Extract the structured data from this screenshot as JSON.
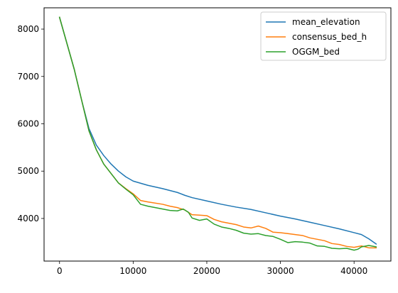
{
  "chart_data": {
    "type": "line",
    "title": "",
    "xlabel": "",
    "ylabel": "",
    "xlim": [
      -2100,
      45000
    ],
    "ylim": [
      3100,
      8450
    ],
    "x_ticks": [
      0,
      10000,
      20000,
      30000,
      40000
    ],
    "x_tick_labels": [
      "0",
      "10000",
      "20000",
      "30000",
      "40000"
    ],
    "y_ticks": [
      4000,
      5000,
      6000,
      7000,
      8000
    ],
    "y_tick_labels": [
      "4000",
      "5000",
      "6000",
      "7000",
      "8000"
    ],
    "grid": false,
    "legend_position": "top-right",
    "series": [
      {
        "name": "mean_elevation",
        "color": "#1f77b4",
        "points": [
          [
            0,
            8250
          ],
          [
            1000,
            7700
          ],
          [
            2000,
            7150
          ],
          [
            3000,
            6500
          ],
          [
            4000,
            5900
          ],
          [
            5000,
            5550
          ],
          [
            6000,
            5330
          ],
          [
            7000,
            5150
          ],
          [
            8000,
            5000
          ],
          [
            9000,
            4880
          ],
          [
            10000,
            4790
          ],
          [
            12000,
            4700
          ],
          [
            14000,
            4630
          ],
          [
            16000,
            4550
          ],
          [
            17000,
            4490
          ],
          [
            18000,
            4440
          ],
          [
            20000,
            4370
          ],
          [
            22000,
            4300
          ],
          [
            24000,
            4240
          ],
          [
            26000,
            4190
          ],
          [
            28000,
            4120
          ],
          [
            30000,
            4050
          ],
          [
            32000,
            3990
          ],
          [
            34000,
            3920
          ],
          [
            36000,
            3850
          ],
          [
            38000,
            3780
          ],
          [
            40000,
            3700
          ],
          [
            41000,
            3660
          ],
          [
            42000,
            3570
          ],
          [
            43000,
            3460
          ]
        ]
      },
      {
        "name": "consensus_bed_h",
        "color": "#ff7f0e",
        "points": [
          [
            0,
            8250
          ],
          [
            1000,
            7700
          ],
          [
            2000,
            7150
          ],
          [
            3000,
            6500
          ],
          [
            4000,
            5850
          ],
          [
            5000,
            5450
          ],
          [
            6000,
            5150
          ],
          [
            7000,
            4950
          ],
          [
            8000,
            4750
          ],
          [
            9000,
            4630
          ],
          [
            10000,
            4520
          ],
          [
            11000,
            4380
          ],
          [
            12000,
            4350
          ],
          [
            14000,
            4300
          ],
          [
            15000,
            4260
          ],
          [
            16000,
            4230
          ],
          [
            17000,
            4180
          ],
          [
            18000,
            4080
          ],
          [
            19000,
            4070
          ],
          [
            20000,
            4060
          ],
          [
            21000,
            3980
          ],
          [
            22000,
            3930
          ],
          [
            24000,
            3870
          ],
          [
            25000,
            3820
          ],
          [
            26000,
            3800
          ],
          [
            27000,
            3840
          ],
          [
            28000,
            3790
          ],
          [
            29000,
            3710
          ],
          [
            30000,
            3700
          ],
          [
            31000,
            3680
          ],
          [
            32000,
            3660
          ],
          [
            33000,
            3640
          ],
          [
            34000,
            3590
          ],
          [
            35000,
            3560
          ],
          [
            36000,
            3530
          ],
          [
            37000,
            3470
          ],
          [
            38000,
            3450
          ],
          [
            39000,
            3410
          ],
          [
            40000,
            3390
          ],
          [
            41000,
            3420
          ],
          [
            42000,
            3380
          ],
          [
            43000,
            3380
          ]
        ]
      },
      {
        "name": "OGGM_bed",
        "color": "#2ca02c",
        "points": [
          [
            0,
            8250
          ],
          [
            1000,
            7700
          ],
          [
            2000,
            7150
          ],
          [
            3000,
            6500
          ],
          [
            4000,
            5850
          ],
          [
            5000,
            5450
          ],
          [
            6000,
            5150
          ],
          [
            7000,
            4950
          ],
          [
            8000,
            4750
          ],
          [
            9000,
            4620
          ],
          [
            10000,
            4500
          ],
          [
            11000,
            4300
          ],
          [
            12000,
            4260
          ],
          [
            14000,
            4200
          ],
          [
            15000,
            4170
          ],
          [
            16000,
            4160
          ],
          [
            16800,
            4200
          ],
          [
            17500,
            4130
          ],
          [
            18000,
            4010
          ],
          [
            19000,
            3960
          ],
          [
            20000,
            3990
          ],
          [
            21000,
            3880
          ],
          [
            22000,
            3820
          ],
          [
            23000,
            3790
          ],
          [
            24000,
            3750
          ],
          [
            25000,
            3690
          ],
          [
            26000,
            3670
          ],
          [
            27000,
            3680
          ],
          [
            28000,
            3640
          ],
          [
            29000,
            3620
          ],
          [
            30000,
            3560
          ],
          [
            31000,
            3490
          ],
          [
            32000,
            3510
          ],
          [
            33000,
            3500
          ],
          [
            34000,
            3480
          ],
          [
            35000,
            3420
          ],
          [
            36000,
            3410
          ],
          [
            37000,
            3370
          ],
          [
            38000,
            3360
          ],
          [
            39000,
            3370
          ],
          [
            40000,
            3330
          ],
          [
            40500,
            3350
          ],
          [
            41000,
            3400
          ],
          [
            42000,
            3430
          ],
          [
            43000,
            3400
          ]
        ]
      }
    ]
  }
}
